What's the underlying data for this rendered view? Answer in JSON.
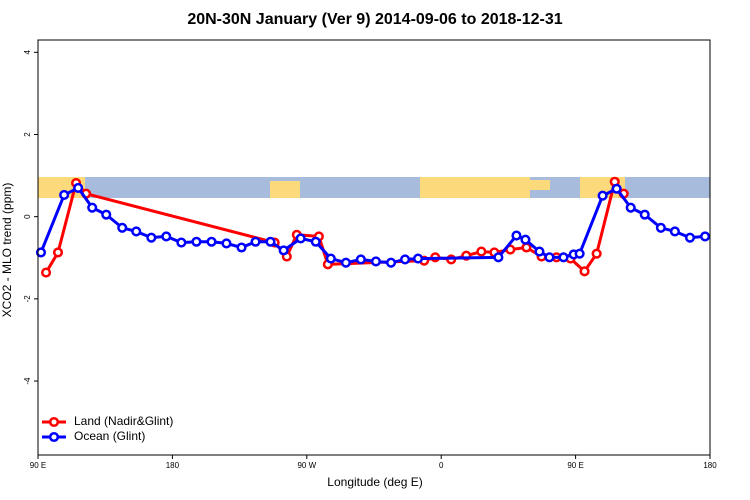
{
  "chart_data": {
    "type": "line",
    "title": "20N-30N January (Ver 9)   2014-09-06 to 2018-12-31",
    "x_label": "Longitude (deg E)",
    "y_label": "XCO2 - MLO trend (ppm)",
    "xlim": [
      90,
      540
    ],
    "ylim": [
      -5.8,
      4.3
    ],
    "xticks": [
      {
        "value": 90,
        "label": "90 E"
      },
      180,
      {
        "value": 270,
        "label": "90 W"
      },
      {
        "value": 360,
        "label": "0"
      },
      {
        "value": 450,
        "label": "90 E"
      },
      {
        "value": 540,
        "label": "180"
      }
    ],
    "yticks": [
      -4,
      -2,
      0,
      2,
      4
    ],
    "legend": "bottom-left",
    "series": [
      {
        "name": "Land (Nadir&Glint)",
        "color": "#ff0000",
        "x": [
          95.4,
          103.4,
          115.5,
          122.2,
          248.5,
          256.6,
          263.3,
          278.1,
          284.1,
          348.6,
          356.0,
          366.7,
          376.8,
          386.9,
          395.6,
          406.3,
          417.1,
          427.2,
          437.2,
          446.6,
          456.0,
          464.1,
          476.2,
          482.2
        ],
        "values": [
          -1.36,
          -0.87,
          0.82,
          0.56,
          -0.63,
          -0.97,
          -0.44,
          -0.48,
          -1.16,
          -1.07,
          -0.99,
          -1.04,
          -0.95,
          -0.85,
          -0.87,
          -0.8,
          -0.75,
          -0.97,
          -0.99,
          -1.02,
          -1.33,
          -0.9,
          0.85,
          0.56
        ]
      },
      {
        "name": "Ocean (Glint)",
        "color": "#0000ff",
        "x": [
          92.0,
          107.5,
          116.9,
          126.3,
          135.7,
          146.4,
          155.8,
          165.9,
          175.9,
          186.0,
          196.1,
          206.2,
          216.2,
          226.3,
          235.7,
          245.7,
          254.5,
          265.9,
          276.0,
          286.1,
          296.2,
          306.2,
          316.3,
          326.4,
          335.8,
          344.5,
          398.3,
          410.4,
          416.4,
          425.8,
          432.5,
          441.9,
          448.7,
          452.7,
          468.1,
          477.5,
          486.9,
          496.3,
          507.1,
          516.5,
          526.6,
          536.7
        ],
        "values": [
          -0.87,
          0.53,
          0.7,
          0.22,
          0.05,
          -0.27,
          -0.36,
          -0.51,
          -0.48,
          -0.63,
          -0.61,
          -0.61,
          -0.65,
          -0.75,
          -0.61,
          -0.61,
          -0.82,
          -0.53,
          -0.61,
          -1.02,
          -1.12,
          -1.04,
          -1.09,
          -1.12,
          -1.04,
          -1.02,
          -0.99,
          -0.46,
          -0.56,
          -0.85,
          -0.99,
          -0.99,
          -0.92,
          -0.9,
          0.51,
          0.68,
          0.22,
          0.05,
          -0.27,
          -0.36,
          -0.51,
          -0.48
        ]
      }
    ]
  }
}
